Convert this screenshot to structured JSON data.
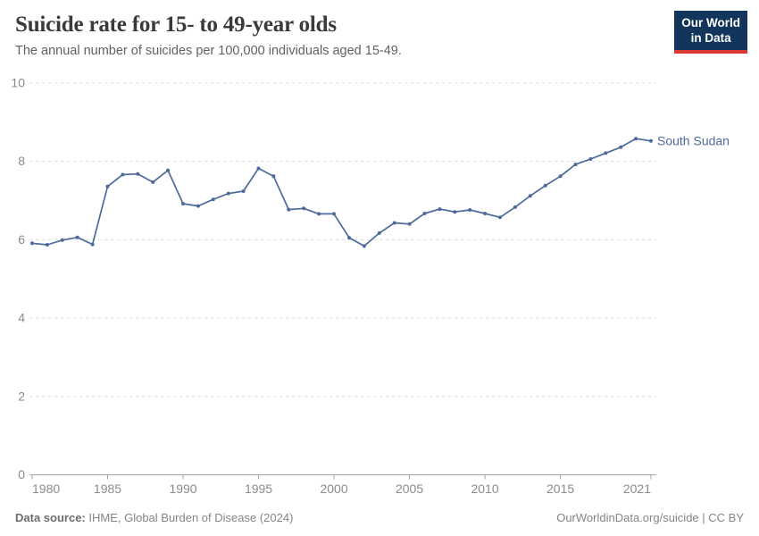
{
  "header": {
    "title": "Suicide rate for 15- to 49-year olds",
    "subtitle": "The annual number of suicides per 100,000 individuals aged 15-49.",
    "logo": {
      "line1": "Our World",
      "line2": "in Data",
      "bg_color": "#12355b",
      "stripe_color": "#dc3936"
    }
  },
  "chart_data": {
    "type": "line",
    "title": "Suicide rate for 15- to 49-year olds",
    "subtitle": "The annual number of suicides per 100,000 individuals aged 15-49.",
    "xlabel": "",
    "ylabel": "",
    "xlim": [
      1980,
      2021
    ],
    "ylim": [
      0,
      10
    ],
    "x_ticks": [
      1980,
      1985,
      1990,
      1995,
      2000,
      2005,
      2010,
      2015,
      2021
    ],
    "y_ticks": [
      0,
      2,
      4,
      6,
      8,
      10
    ],
    "grid": "horizontal-dashed",
    "legend_position": "end-of-line-label",
    "series": [
      {
        "name": "South Sudan",
        "color": "#4c6a9c",
        "x": [
          1980,
          1981,
          1982,
          1983,
          1984,
          1985,
          1986,
          1987,
          1988,
          1989,
          1990,
          1991,
          1992,
          1993,
          1994,
          1995,
          1996,
          1997,
          1998,
          1999,
          2000,
          2001,
          2002,
          2003,
          2004,
          2005,
          2006,
          2007,
          2008,
          2009,
          2010,
          2011,
          2012,
          2013,
          2014,
          2015,
          2016,
          2017,
          2018,
          2019,
          2020,
          2021
        ],
        "values": [
          5.91,
          5.87,
          5.99,
          6.06,
          5.88,
          7.36,
          7.66,
          7.68,
          7.47,
          7.77,
          6.92,
          6.86,
          7.03,
          7.18,
          7.24,
          7.82,
          7.62,
          6.77,
          6.8,
          6.66,
          6.66,
          6.05,
          5.84,
          6.17,
          6.43,
          6.4,
          6.67,
          6.78,
          6.71,
          6.76,
          6.67,
          6.57,
          6.83,
          7.12,
          7.38,
          7.62,
          7.92,
          8.06,
          8.21,
          8.36,
          8.58,
          8.52
        ]
      }
    ],
    "colors": {
      "gridline": "#dcdcdc",
      "axis_line": "#a3a3a3",
      "tick_label": "#8b8b8b"
    }
  },
  "footer": {
    "source_bold": "Data source:",
    "source_rest": " IHME, Global Burden of Disease (2024)",
    "right_text": "OurWorldinData.org/suicide | CC BY"
  }
}
